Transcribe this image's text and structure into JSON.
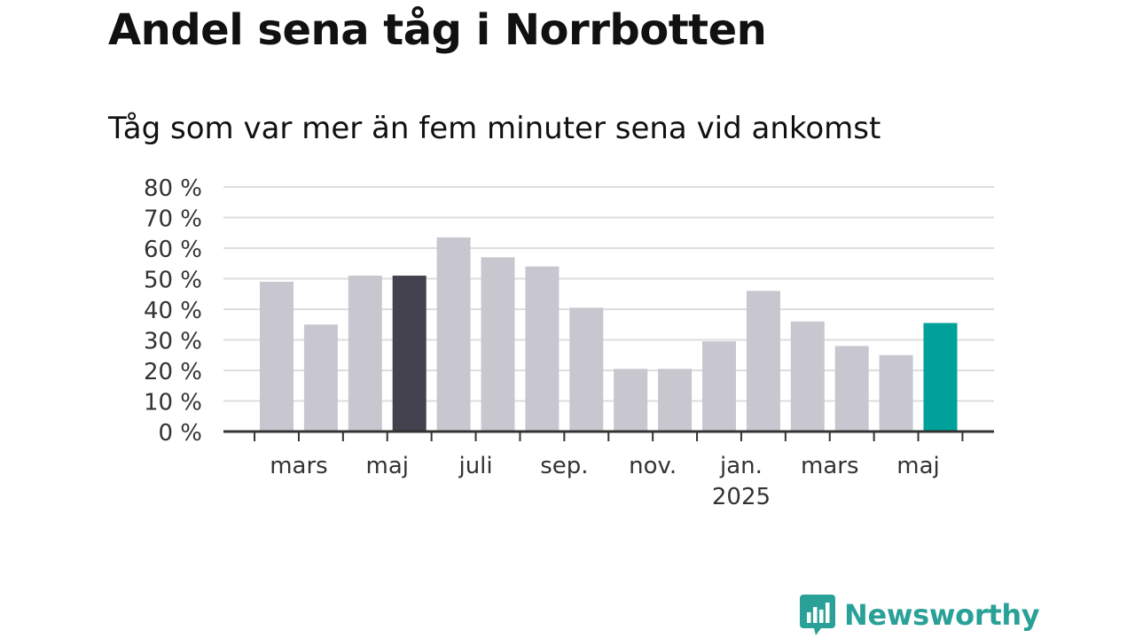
{
  "header": {
    "title": "Andel sena tåg i Norrbotten",
    "subtitle": "Tåg som var mer än fem minuter sena vid ankomst"
  },
  "brand": {
    "name": "Newsworthy",
    "icon": "bar-chart-speech-bubble-icon",
    "color": "#2aa198"
  },
  "colors": {
    "bar_default": "#c8c7cf",
    "bar_highlight_dark": "#43414d",
    "bar_highlight_accent": "#00a19a",
    "grid": "#dddddd",
    "axis": "#333333"
  },
  "chart_data": {
    "type": "bar",
    "title": "Andel sena tåg i Norrbotten",
    "subtitle": "Tåg som var mer än fem minuter sena vid ankomst",
    "x": [
      "2024-02",
      "2024-03",
      "2024-04",
      "2024-05",
      "2024-06",
      "2024-07",
      "2024-08",
      "2024-09",
      "2024-10",
      "2024-11",
      "2024-12",
      "2025-01",
      "2025-02",
      "2025-03",
      "2025-04",
      "2025-05"
    ],
    "values": [
      49,
      35,
      51,
      51,
      63.5,
      57,
      54,
      40.5,
      20.5,
      20.5,
      29.5,
      46,
      36,
      28,
      25,
      35.5
    ],
    "unit": "%",
    "highlight": {
      "2024-05": "#43414d",
      "2025-05": "#00a19a"
    },
    "ylim": [
      0,
      80
    ],
    "yticks": [
      0,
      10,
      20,
      30,
      40,
      50,
      60,
      70,
      80
    ],
    "ytick_labels": [
      "0 %",
      "10 %",
      "20 %",
      "30 %",
      "40 %",
      "50 %",
      "60 %",
      "70 %",
      "80 %"
    ],
    "xtick_labels": [
      {
        "x": "2024-03",
        "label": "mars"
      },
      {
        "x": "2024-05",
        "label": "maj"
      },
      {
        "x": "2024-07",
        "label": "juli"
      },
      {
        "x": "2024-09",
        "label": "sep."
      },
      {
        "x": "2024-11",
        "label": "nov."
      },
      {
        "x": "2025-01",
        "label": "jan.",
        "sublabel": "2025"
      },
      {
        "x": "2025-03",
        "label": "mars"
      },
      {
        "x": "2025-05",
        "label": "maj"
      }
    ],
    "grid": true,
    "legend": "none"
  }
}
